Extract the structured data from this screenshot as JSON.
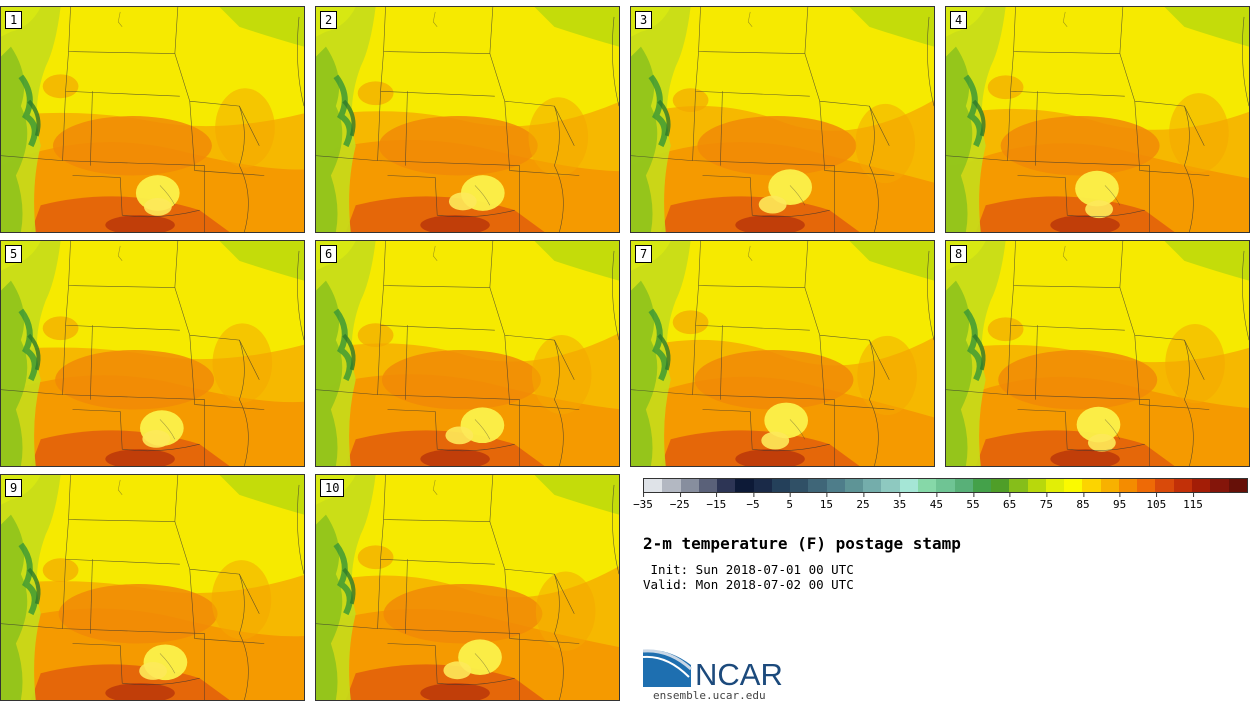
{
  "panels": [
    {
      "label": "1"
    },
    {
      "label": "2"
    },
    {
      "label": "3"
    },
    {
      "label": "4"
    },
    {
      "label": "5"
    },
    {
      "label": "6"
    },
    {
      "label": "7"
    },
    {
      "label": "8"
    },
    {
      "label": "9"
    },
    {
      "label": "10"
    }
  ],
  "colorbar": {
    "colors": [
      "#dfe3e8",
      "#b3b8c2",
      "#878e9e",
      "#5a6179",
      "#2d3555",
      "#0d1a37",
      "#1a2a48",
      "#24405a",
      "#305066",
      "#3f6678",
      "#4e7d8a",
      "#5e9496",
      "#74adab",
      "#8ec9c0",
      "#a5e6d6",
      "#86d8a8",
      "#6fc494",
      "#58b078",
      "#44a14a",
      "#4f9e28",
      "#86be1a",
      "#b8d80c",
      "#e2ee06",
      "#fbfa00",
      "#fcd400",
      "#f8b100",
      "#f48c00",
      "#ee6a06",
      "#d94a0a",
      "#c23008",
      "#a31d06",
      "#84150a",
      "#661008"
    ],
    "ticks": [
      "−35",
      "−25",
      "−15",
      "−5",
      "5",
      "15",
      "25",
      "35",
      "45",
      "55",
      "65",
      "75",
      "85",
      "95",
      "105",
      "115"
    ]
  },
  "title": "2-m temperature (F) postage stamp",
  "init": " Init: Sun 2018-07-01 00 UTC",
  "valid": "Valid: Mon 2018-07-02 00 UTC",
  "logo": {
    "text": "NCAR",
    "url": "ensemble.ucar.edu"
  }
}
